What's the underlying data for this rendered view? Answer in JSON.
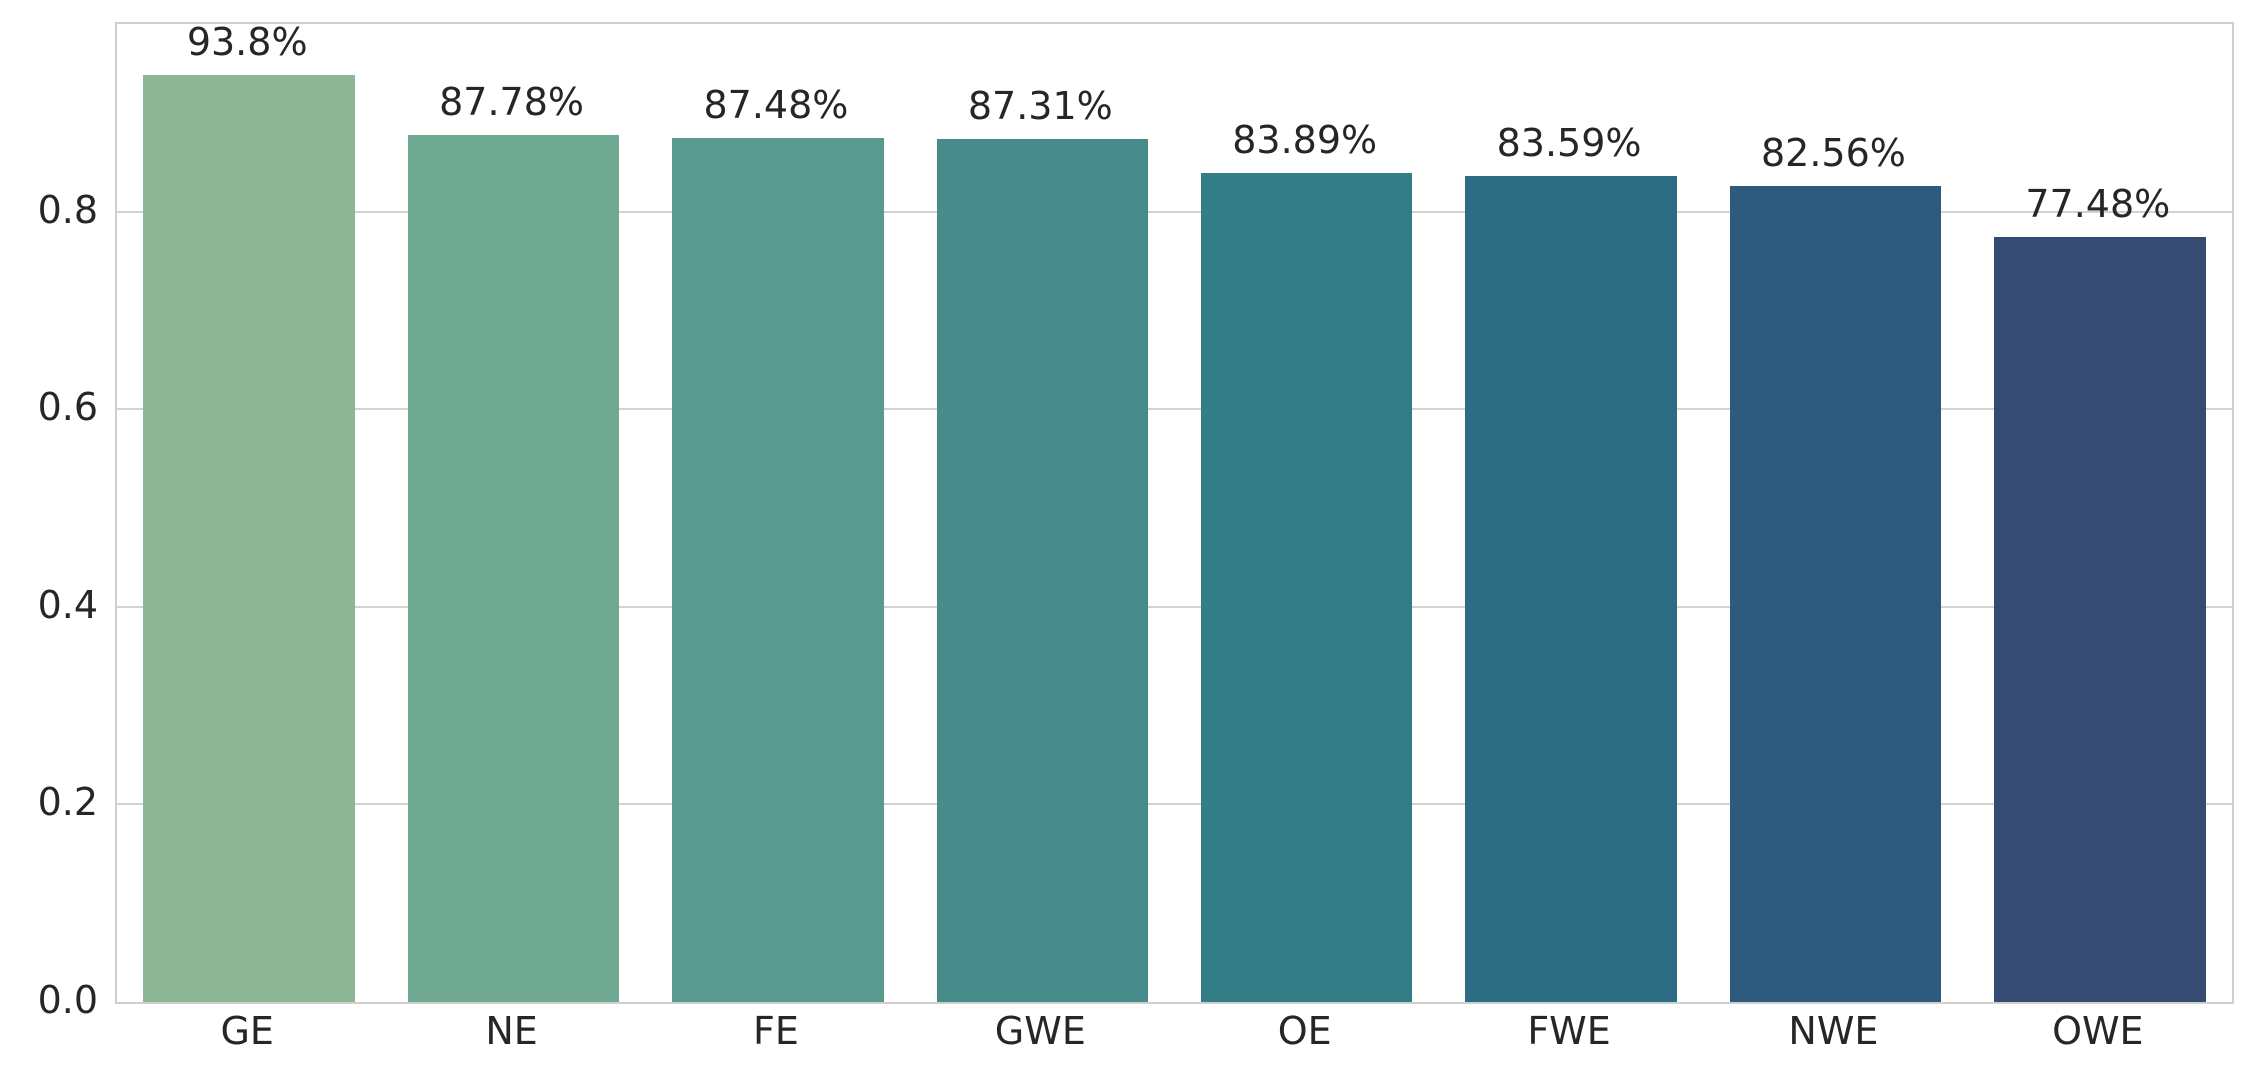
{
  "chart_data": {
    "type": "bar",
    "title": "",
    "xlabel": "",
    "ylabel": "",
    "categories": [
      "GE",
      "NE",
      "FE",
      "GWE",
      "OE",
      "FWE",
      "NWE",
      "OWE"
    ],
    "values": [
      0.938,
      0.8778,
      0.8748,
      0.8731,
      0.8389,
      0.8359,
      0.8256,
      0.7748
    ],
    "bar_labels": [
      "93.8%",
      "87.78%",
      "87.48%",
      "87.31%",
      "83.89%",
      "83.59%",
      "82.56%",
      "77.48%"
    ],
    "bar_colors": [
      "#8cb695",
      "#6fa992",
      "#5a9a8e",
      "#478b8a",
      "#337d87",
      "#2d6d83",
      "#2e5a7e",
      "#364b72"
    ],
    "ylim": [
      0,
      0.99
    ],
    "yticks": [
      0.0,
      0.2,
      0.4,
      0.6,
      0.8
    ],
    "ytick_labels": [
      "0.0",
      "0.2",
      "0.4",
      "0.6",
      "0.8"
    ],
    "grid": "horizontal",
    "legend": "none",
    "bar_width_frac": 0.8,
    "colors": {
      "background": "#ffffff",
      "grid": "#d2d2d2",
      "frame": "#cfcfcf",
      "text": "#262626"
    }
  }
}
